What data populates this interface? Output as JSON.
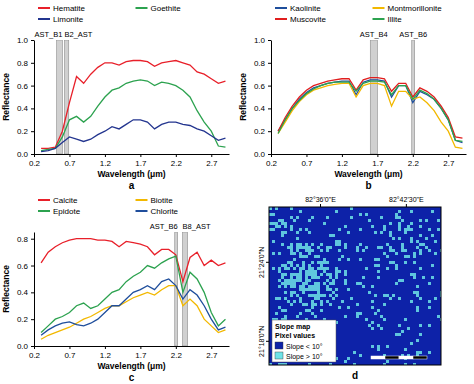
{
  "chart_data": [
    {
      "type": "line",
      "title": "a",
      "xlabel": "Wavelength (μm)",
      "ylabel": "Reflectance",
      "x": [
        0.3,
        0.4,
        0.5,
        0.6,
        0.7,
        0.8,
        0.9,
        1.0,
        1.1,
        1.2,
        1.3,
        1.4,
        1.5,
        1.6,
        1.7,
        1.8,
        1.9,
        2.0,
        2.1,
        2.2,
        2.3,
        2.4,
        2.5,
        2.6,
        2.7,
        2.8,
        2.9
      ],
      "series": [
        {
          "name": "Hematite",
          "color": "#e8202a",
          "values": [
            0.05,
            0.05,
            0.06,
            0.2,
            0.45,
            0.68,
            0.62,
            0.7,
            0.76,
            0.8,
            0.8,
            0.78,
            0.81,
            0.82,
            0.82,
            0.81,
            0.77,
            0.8,
            0.81,
            0.82,
            0.8,
            0.78,
            0.72,
            0.7,
            0.66,
            0.62,
            0.64
          ]
        },
        {
          "name": "Goethite",
          "color": "#2ca24f",
          "values": [
            0.03,
            0.04,
            0.05,
            0.15,
            0.3,
            0.33,
            0.28,
            0.33,
            0.42,
            0.5,
            0.56,
            0.58,
            0.62,
            0.64,
            0.65,
            0.64,
            0.6,
            0.63,
            0.62,
            0.6,
            0.56,
            0.5,
            0.38,
            0.28,
            0.2,
            0.07,
            0.06
          ]
        },
        {
          "name": "Limonite",
          "color": "#23358f",
          "values": [
            0.02,
            0.03,
            0.05,
            0.1,
            0.15,
            0.13,
            0.11,
            0.13,
            0.17,
            0.2,
            0.24,
            0.22,
            0.26,
            0.3,
            0.3,
            0.28,
            0.22,
            0.26,
            0.28,
            0.28,
            0.26,
            0.25,
            0.22,
            0.2,
            0.16,
            0.12,
            0.14
          ]
        }
      ],
      "bands": [
        {
          "label": "AST_B1",
          "range": [
            0.52,
            0.6
          ]
        },
        {
          "label": "B2_AST",
          "range": [
            0.63,
            0.69
          ]
        }
      ],
      "xlim": [
        0.2,
        2.95
      ],
      "xticks": [
        0.2,
        0.7,
        1.2,
        1.7,
        2.2,
        2.7
      ],
      "ylim": [
        0,
        1
      ],
      "yticks": [
        {
          "value": 0,
          "label": "0.0"
        },
        0.2,
        0.4,
        0.6,
        0.8,
        {
          "value": 1,
          "label": "1.0"
        }
      ]
    },
    {
      "type": "line",
      "title": "b",
      "xlabel": "Wavelength (μm)",
      "ylabel": "Reflectance",
      "x": [
        0.3,
        0.4,
        0.5,
        0.6,
        0.7,
        0.8,
        0.9,
        1.0,
        1.1,
        1.2,
        1.3,
        1.4,
        1.5,
        1.6,
        1.7,
        1.8,
        1.9,
        2.0,
        2.1,
        2.2,
        2.3,
        2.4,
        2.5,
        2.6,
        2.7,
        2.8,
        2.9
      ],
      "series": [
        {
          "name": "Kaolinite",
          "color": "#1f4e9c",
          "values": [
            0.2,
            0.3,
            0.4,
            0.48,
            0.54,
            0.58,
            0.6,
            0.62,
            0.63,
            0.64,
            0.64,
            0.52,
            0.63,
            0.65,
            0.65,
            0.64,
            0.5,
            0.6,
            0.6,
            0.45,
            0.55,
            0.52,
            0.48,
            0.4,
            0.3,
            0.12,
            0.1
          ]
        },
        {
          "name": "Montmorillonite",
          "color": "#f2b800",
          "values": [
            0.18,
            0.28,
            0.38,
            0.46,
            0.52,
            0.56,
            0.58,
            0.6,
            0.61,
            0.62,
            0.62,
            0.5,
            0.6,
            0.62,
            0.62,
            0.6,
            0.42,
            0.55,
            0.55,
            0.48,
            0.5,
            0.45,
            0.38,
            0.28,
            0.2,
            0.06,
            0.05
          ]
        },
        {
          "name": "Muscovite",
          "color": "#e01e1e",
          "values": [
            0.2,
            0.32,
            0.42,
            0.5,
            0.56,
            0.6,
            0.62,
            0.64,
            0.65,
            0.66,
            0.66,
            0.56,
            0.65,
            0.67,
            0.67,
            0.66,
            0.55,
            0.62,
            0.62,
            0.5,
            0.58,
            0.55,
            0.5,
            0.42,
            0.32,
            0.15,
            0.14
          ]
        },
        {
          "name": "Illite",
          "color": "#2ca24f",
          "values": [
            0.18,
            0.3,
            0.4,
            0.47,
            0.53,
            0.57,
            0.6,
            0.62,
            0.63,
            0.63,
            0.63,
            0.55,
            0.62,
            0.64,
            0.64,
            0.63,
            0.52,
            0.6,
            0.6,
            0.48,
            0.56,
            0.53,
            0.48,
            0.4,
            0.3,
            0.12,
            0.11
          ]
        }
      ],
      "bands": [
        {
          "label": "AST_B4",
          "range": [
            1.6,
            1.7
          ]
        },
        {
          "label": "AST_B6",
          "range": [
            2.185,
            2.225
          ]
        }
      ],
      "xlim": [
        0.2,
        2.95
      ],
      "xticks": [
        0.2,
        0.7,
        1.2,
        1.7,
        2.2,
        2.7
      ],
      "ylim": [
        0,
        1
      ],
      "yticks": [
        {
          "value": 0,
          "label": "0.0"
        },
        0.2,
        0.4,
        0.6,
        0.8,
        {
          "value": 1,
          "label": "1.0"
        }
      ]
    },
    {
      "type": "line",
      "title": "c",
      "xlabel": "Wavelength (μm)",
      "ylabel": "Reflectance",
      "x": [
        0.3,
        0.4,
        0.5,
        0.6,
        0.7,
        0.8,
        0.9,
        1.0,
        1.1,
        1.2,
        1.3,
        1.4,
        1.5,
        1.6,
        1.7,
        1.8,
        1.9,
        2.0,
        2.1,
        2.2,
        2.3,
        2.4,
        2.5,
        2.6,
        2.7,
        2.8,
        2.9
      ],
      "series": [
        {
          "name": "Calcite",
          "color": "#e8202a",
          "values": [
            0.62,
            0.7,
            0.74,
            0.77,
            0.79,
            0.8,
            0.8,
            0.8,
            0.79,
            0.79,
            0.78,
            0.74,
            0.78,
            0.77,
            0.76,
            0.74,
            0.68,
            0.72,
            0.72,
            0.68,
            0.48,
            0.66,
            0.7,
            0.6,
            0.64,
            0.6,
            0.62
          ]
        },
        {
          "name": "Biotite",
          "color": "#f2b800",
          "values": [
            0.05,
            0.08,
            0.1,
            0.12,
            0.14,
            0.17,
            0.2,
            0.22,
            0.25,
            0.28,
            0.3,
            0.3,
            0.33,
            0.36,
            0.38,
            0.4,
            0.38,
            0.42,
            0.45,
            0.45,
            0.3,
            0.35,
            0.3,
            0.2,
            0.15,
            0.1,
            0.12
          ]
        },
        {
          "name": "Epidote",
          "color": "#2ca24f",
          "values": [
            0.1,
            0.15,
            0.2,
            0.22,
            0.25,
            0.3,
            0.32,
            0.28,
            0.3,
            0.35,
            0.4,
            0.42,
            0.48,
            0.52,
            0.55,
            0.6,
            0.58,
            0.62,
            0.65,
            0.67,
            0.4,
            0.55,
            0.5,
            0.4,
            0.25,
            0.15,
            0.2
          ]
        },
        {
          "name": "Chlorite",
          "color": "#1f4e9c",
          "values": [
            0.08,
            0.12,
            0.15,
            0.17,
            0.18,
            0.16,
            0.15,
            0.17,
            0.2,
            0.25,
            0.3,
            0.3,
            0.35,
            0.4,
            0.42,
            0.45,
            0.42,
            0.48,
            0.5,
            0.45,
            0.35,
            0.42,
            0.38,
            0.3,
            0.2,
            0.12,
            0.14
          ]
        }
      ],
      "bands": [
        {
          "label": "AST_B6",
          "range": [
            2.185,
            2.225
          ]
        },
        {
          "label": "B8_AST",
          "range": [
            2.295,
            2.365
          ]
        }
      ],
      "xlim": [
        0.2,
        2.95
      ],
      "xticks": [
        0.2,
        0.7,
        1.2,
        1.7,
        2.2,
        2.7
      ],
      "ylim": [
        0,
        0.85
      ],
      "yticks": [
        {
          "value": 0,
          "label": "0.0"
        },
        0.2,
        0.4,
        0.6,
        0.8
      ]
    },
    {
      "type": "map",
      "title": "d",
      "legend_title": "Slope map",
      "legend_subtitle": "Pixel values",
      "classes": [
        {
          "name": "Slope < 10°",
          "color": "#0d22a8"
        },
        {
          "name": "Slope > 10°",
          "color": "#6fe3e8"
        }
      ],
      "xlim": [
        82.535,
        82.752
      ],
      "xticks": [
        {
          "value": 82.6,
          "label": "82°36'0\"E"
        },
        {
          "value": 82.7083,
          "label": "82°42'30\"E"
        }
      ],
      "ylim": [
        21.27,
        21.47
      ],
      "yticks": [
        {
          "value": 21.4,
          "label": "21°24'0\"N"
        },
        {
          "value": 21.3,
          "label": "21°18'0\"N"
        }
      ]
    }
  ]
}
